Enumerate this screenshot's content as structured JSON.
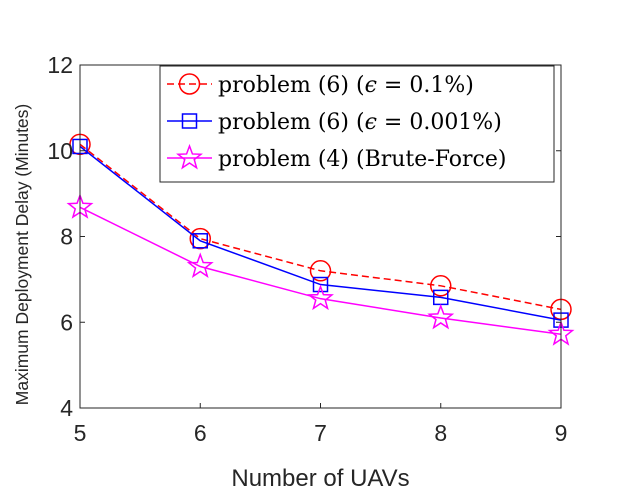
{
  "chart_data": {
    "type": "line",
    "title": "",
    "xlabel": "Number of UAVs",
    "ylabel": "Maximum Deployment Delay (Minutes)",
    "x": [
      5,
      6,
      7,
      8,
      9
    ],
    "xlim": [
      5,
      9
    ],
    "ylim": [
      4,
      12
    ],
    "xticks": [
      "5",
      "6",
      "7",
      "8",
      "9"
    ],
    "yticks": [
      "4",
      "6",
      "8",
      "10",
      "12"
    ],
    "grid": false,
    "legend_position": "top-right",
    "series": [
      {
        "name": "problem (6) (ϵ = 0.1%)",
        "legend_parts": [
          "problem (6) (",
          "ϵ",
          " = 0.1%)"
        ],
        "color": "#ff0000",
        "line_style": "dashed",
        "marker": "circle",
        "values": [
          10.15,
          7.95,
          7.2,
          6.85,
          6.3
        ]
      },
      {
        "name": "problem (6) (ϵ = 0.001%)",
        "legend_parts": [
          "problem (6) (",
          "ϵ",
          " = 0.001%)"
        ],
        "color": "#0000ff",
        "line_style": "solid",
        "marker": "square",
        "values": [
          10.1,
          7.9,
          6.88,
          6.58,
          6.05
        ]
      },
      {
        "name": "problem (4) (Brute-Force)",
        "legend_parts": [
          "problem (4) (Brute-Force)",
          "",
          ""
        ],
        "color": "#ff00ff",
        "line_style": "solid",
        "marker": "star",
        "values": [
          8.68,
          7.3,
          6.55,
          6.1,
          5.72
        ]
      }
    ]
  }
}
